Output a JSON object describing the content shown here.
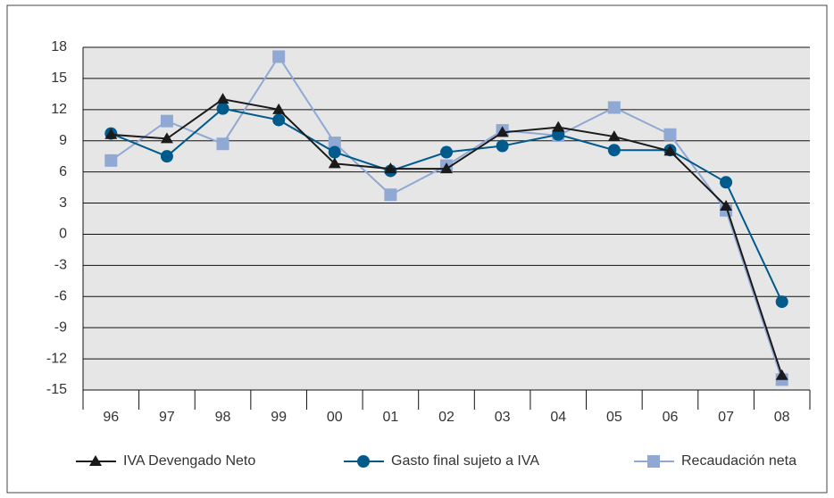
{
  "chart_data": {
    "type": "line",
    "categories": [
      "96",
      "97",
      "98",
      "99",
      "00",
      "01",
      "02",
      "03",
      "04",
      "05",
      "06",
      "07",
      "08"
    ],
    "series": [
      {
        "name": "IVA Devengado Neto",
        "color": "#1a1a1a",
        "marker": "triangle",
        "values": [
          9.6,
          9.2,
          13.0,
          12.0,
          6.8,
          6.3,
          6.3,
          9.8,
          10.3,
          9.4,
          8.0,
          2.7,
          -13.6
        ]
      },
      {
        "name": "Gasto final sujeto a IVA",
        "color": "#005a8c",
        "marker": "circle",
        "values": [
          9.7,
          7.5,
          12.1,
          11.0,
          7.9,
          6.1,
          7.9,
          8.5,
          9.6,
          8.1,
          8.1,
          5.0,
          -6.5
        ]
      },
      {
        "name": "Recaudación neta",
        "color": "#8fa8d4",
        "marker": "square",
        "values": [
          7.1,
          10.9,
          8.7,
          17.1,
          8.8,
          3.8,
          6.6,
          10.0,
          9.5,
          12.2,
          9.6,
          2.3,
          -14.0
        ]
      }
    ],
    "ylim": [
      -15,
      18
    ],
    "yticks": [
      -15,
      -12,
      -9,
      -6,
      -3,
      0,
      3,
      6,
      9,
      12,
      15,
      18
    ],
    "grid": true,
    "legend": "bottom"
  }
}
